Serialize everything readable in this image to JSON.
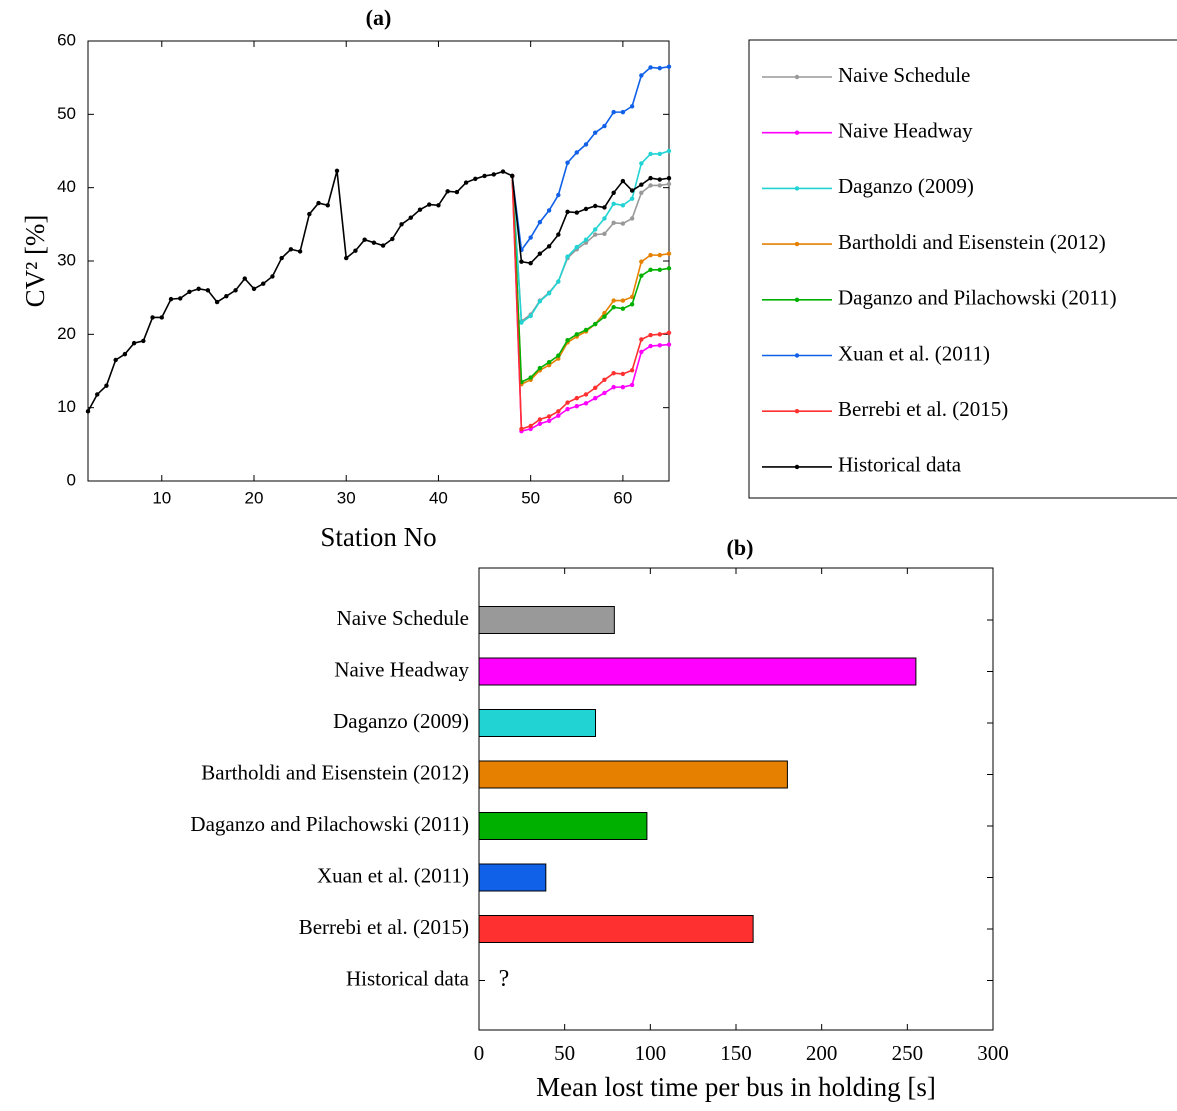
{
  "chart_data": [
    {
      "type": "line",
      "title": "(a)",
      "xlabel": "Station No",
      "ylabel": "CV² [%]",
      "xlim": [
        2,
        65
      ],
      "xticks": [
        10,
        20,
        30,
        40,
        50,
        60
      ],
      "ylim": [
        0,
        60
      ],
      "yticks": [
        0,
        10,
        20,
        30,
        40,
        50,
        60
      ],
      "legend": "right",
      "series": [
        {
          "name": "Naive Schedule",
          "color": "#999999",
          "x": [
            48,
            49,
            50,
            51,
            52,
            53,
            54,
            55,
            56,
            57,
            58,
            59,
            60,
            61,
            62,
            63,
            64,
            65
          ],
          "values": [
            41.6,
            21.8,
            22.7,
            24.6,
            25.7,
            27.2,
            30.4,
            31.6,
            32.5,
            33.6,
            33.7,
            35.2,
            35.1,
            35.8,
            39.3,
            40.3,
            40.3,
            40.5
          ]
        },
        {
          "name": "Naive Headway",
          "color": "#ff00ff",
          "x": [
            48,
            49,
            50,
            51,
            52,
            53,
            54,
            55,
            56,
            57,
            58,
            59,
            60,
            61,
            62,
            63,
            64,
            65
          ],
          "values": [
            41.6,
            6.8,
            7.1,
            7.8,
            8.2,
            8.9,
            9.8,
            10.2,
            10.6,
            11.3,
            12,
            12.8,
            12.8,
            13.1,
            17.6,
            18.4,
            18.5,
            18.6
          ]
        },
        {
          "name": "Daganzo (2009)",
          "color": "#22d3d3",
          "x": [
            48,
            49,
            50,
            51,
            52,
            53,
            54,
            55,
            56,
            57,
            58,
            59,
            60,
            61,
            62,
            63,
            64,
            65
          ],
          "values": [
            41.6,
            21.6,
            22.5,
            24.5,
            25.6,
            27.2,
            30.6,
            31.9,
            32.9,
            34.3,
            35.8,
            37.8,
            37.6,
            38.5,
            43.3,
            44.6,
            44.6,
            45
          ]
        },
        {
          "name": "Bartholdi and Eisenstein (2012)",
          "color": "#e58000",
          "x": [
            48,
            49,
            50,
            51,
            52,
            53,
            54,
            55,
            56,
            57,
            58,
            59,
            60,
            61,
            62,
            63,
            64,
            65
          ],
          "values": [
            41.6,
            13.2,
            13.8,
            15.1,
            15.8,
            16.7,
            18.9,
            19.7,
            20.4,
            21.4,
            22.9,
            24.6,
            24.6,
            25.1,
            29.9,
            30.8,
            30.8,
            31
          ]
        },
        {
          "name": "Daganzo and Pilachowski (2011)",
          "color": "#00b000",
          "x": [
            48,
            49,
            50,
            51,
            52,
            53,
            54,
            55,
            56,
            57,
            58,
            59,
            60,
            61,
            62,
            63,
            64,
            65
          ],
          "values": [
            41.6,
            13.5,
            14.1,
            15.4,
            16.2,
            17.1,
            19.2,
            20,
            20.6,
            21.4,
            22.4,
            23.7,
            23.5,
            24.1,
            28,
            28.8,
            28.8,
            29
          ]
        },
        {
          "name": "Xuan et al. (2011)",
          "color": "#1060e8",
          "x": [
            48,
            49,
            50,
            51,
            52,
            53,
            54,
            55,
            56,
            57,
            58,
            59,
            60,
            61,
            62,
            63,
            64,
            65
          ],
          "values": [
            41.6,
            31.5,
            33.2,
            35.3,
            36.9,
            39,
            43.4,
            44.8,
            45.9,
            47.5,
            48.4,
            50.3,
            50.3,
            51.1,
            55.3,
            56.4,
            56.3,
            56.5
          ]
        },
        {
          "name": "Berrebi et al. (2015)",
          "color": "#ff3030",
          "x": [
            48,
            49,
            50,
            51,
            52,
            53,
            54,
            55,
            56,
            57,
            58,
            59,
            60,
            61,
            62,
            63,
            64,
            65
          ],
          "values": [
            41.6,
            7.1,
            7.5,
            8.4,
            8.8,
            9.5,
            10.7,
            11.3,
            11.8,
            12.7,
            13.8,
            14.7,
            14.6,
            15.1,
            19.3,
            19.9,
            20,
            20.2
          ]
        },
        {
          "name": "Historical data",
          "color": "#000000",
          "x": [
            2,
            3,
            4,
            5,
            6,
            7,
            8,
            9,
            10,
            11,
            12,
            13,
            14,
            15,
            16,
            17,
            18,
            19,
            20,
            21,
            22,
            23,
            24,
            25,
            26,
            27,
            28,
            29,
            30,
            31,
            32,
            33,
            34,
            35,
            36,
            37,
            38,
            39,
            40,
            41,
            42,
            43,
            44,
            45,
            46,
            47,
            48,
            49,
            50,
            51,
            52,
            53,
            54,
            55,
            56,
            57,
            58,
            59,
            60,
            61,
            62,
            63,
            64,
            65
          ],
          "values": [
            9.5,
            11.8,
            13,
            16.5,
            17.3,
            18.8,
            19.1,
            22.3,
            22.3,
            24.8,
            24.9,
            25.8,
            26.2,
            26,
            24.4,
            25.2,
            26,
            27.6,
            26.2,
            26.9,
            27.9,
            30.4,
            31.6,
            31.3,
            36.4,
            37.9,
            37.6,
            42.3,
            30.4,
            31.4,
            32.9,
            32.5,
            32.1,
            33,
            35,
            35.9,
            37,
            37.7,
            37.6,
            39.5,
            39.4,
            40.7,
            41.2,
            41.6,
            41.8,
            42.2,
            41.6,
            29.9,
            29.7,
            31,
            32,
            33.6,
            36.7,
            36.6,
            37.1,
            37.5,
            37.3,
            39.3,
            40.9,
            39.6,
            40.4,
            41.3,
            41.1,
            41.3
          ]
        }
      ]
    },
    {
      "type": "hbar",
      "title": "(b)",
      "xlabel": "Mean lost time per bus in holding [s]",
      "xlim": [
        0,
        300
      ],
      "xticks": [
        0,
        50,
        100,
        150,
        200,
        250,
        300
      ],
      "categories": [
        "Naive Schedule",
        "Naive Headway",
        "Daganzo (2009)",
        "Bartholdi and Eisenstein (2012)",
        "Daganzo and Pilachowski (2011)",
        "Xuan et al. (2011)",
        "Berrebi et al. (2015)",
        "Historical data"
      ],
      "values": [
        79,
        255,
        68,
        180,
        98,
        39,
        160,
        null
      ],
      "colors": [
        "#999999",
        "#ff00ff",
        "#22d3d3",
        "#e58000",
        "#00b000",
        "#1060e8",
        "#ff3030",
        "#000000"
      ],
      "annotation": "?"
    }
  ]
}
